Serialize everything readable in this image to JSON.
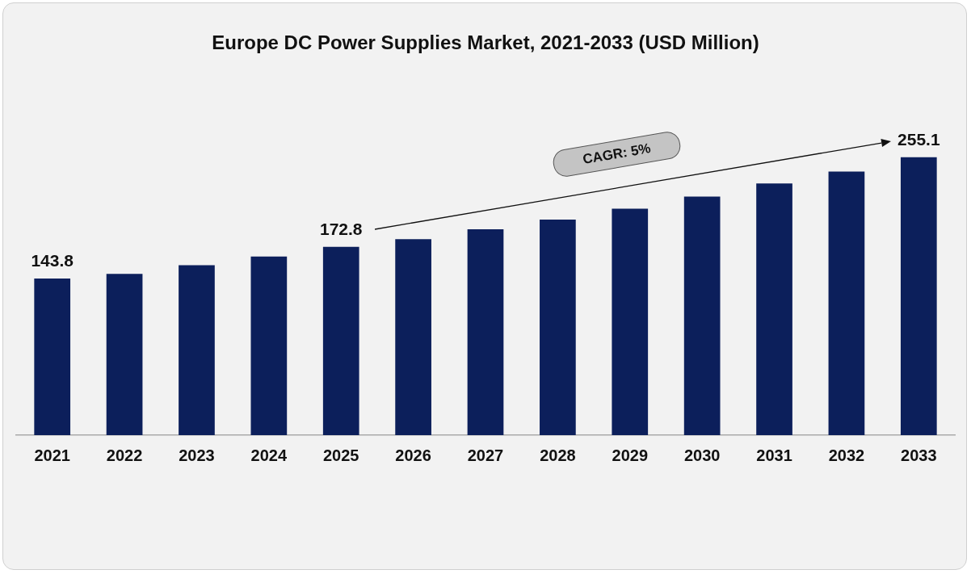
{
  "chart_data": {
    "type": "bar",
    "title": "Europe DC Power Supplies Market, 2021-2033 (USD Million)",
    "categories": [
      "2021",
      "2022",
      "2023",
      "2024",
      "2025",
      "2026",
      "2027",
      "2028",
      "2029",
      "2030",
      "2031",
      "2032",
      "2033"
    ],
    "values": [
      143.8,
      148,
      156,
      164,
      172.8,
      180,
      189,
      198,
      208,
      219,
      231,
      242,
      255.1
    ],
    "value_labels": [
      "143.8",
      null,
      null,
      null,
      "172.8",
      null,
      null,
      null,
      null,
      null,
      null,
      null,
      "255.1"
    ],
    "color": "#0c1f5b",
    "annotations": [
      "CAGR: 5%"
    ],
    "legend": false,
    "grid": false,
    "tick_labels": "x"
  }
}
